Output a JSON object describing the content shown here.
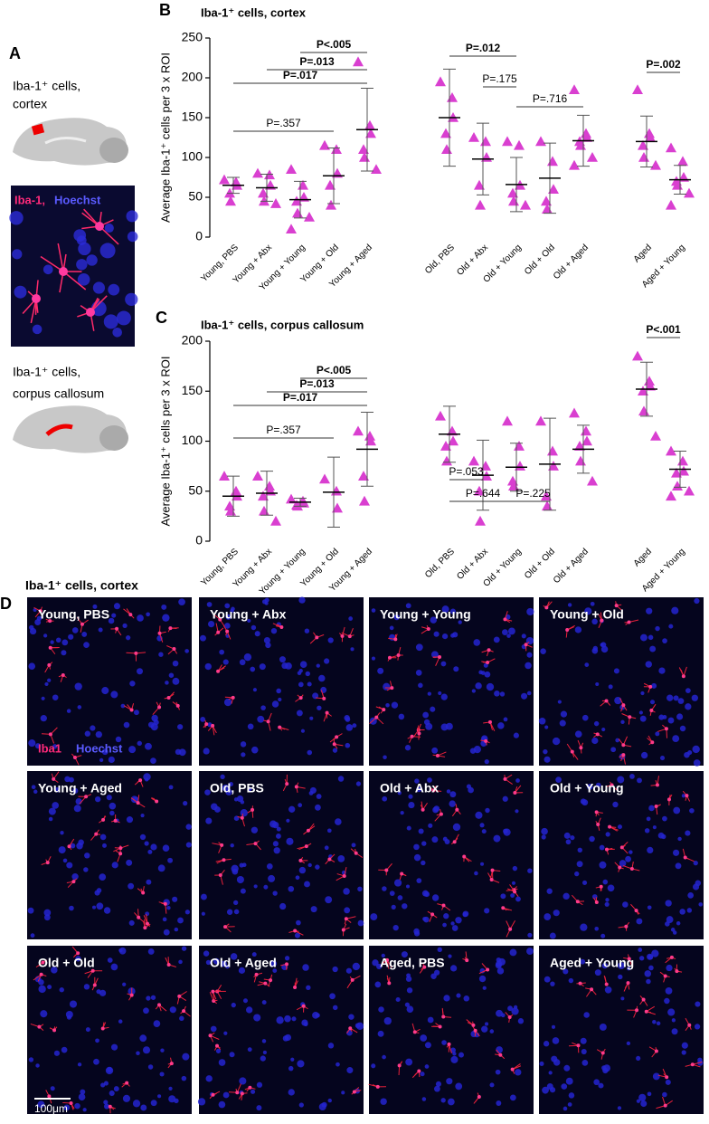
{
  "panel_a": {
    "label": "A",
    "cortex_text": [
      "Iba-1⁺ cells,",
      "cortex"
    ],
    "stain_labels": [
      "Iba-1,",
      "Hoechst"
    ],
    "callosum_text": [
      "Iba-1⁺ cells,",
      "corpus callosum"
    ]
  },
  "chart_data": [
    {
      "type": "scatter",
      "panel": "B",
      "title": "Iba-1⁺ cells, cortex",
      "y_label": "Average Iba-1⁺ cells per 3 x ROI",
      "color": "#d93fd0",
      "categories": [
        "Young, PBS",
        "Young + Abx",
        "Young + Young",
        "Young + Old",
        "Young + Aged",
        "Old, PBS",
        "Old + Abx",
        "Old + Young",
        "Old + Old",
        "Old + Aged",
        "Aged",
        "Aged + Young"
      ],
      "points": [
        [
          72,
          69,
          65,
          55,
          45
        ],
        [
          80,
          78,
          65,
          55,
          45,
          42
        ],
        [
          85,
          65,
          50,
          45,
          30,
          25,
          10
        ],
        [
          115,
          110,
          80,
          65,
          40
        ],
        [
          220,
          140,
          130,
          110,
          100,
          85
        ],
        [
          195,
          175,
          150,
          130,
          110
        ],
        [
          125,
          120,
          100,
          65,
          40
        ],
        [
          120,
          115,
          65,
          55,
          45,
          40
        ],
        [
          120,
          95,
          60,
          45,
          35
        ],
        [
          185,
          130,
          125,
          120,
          115,
          100,
          90
        ],
        [
          185,
          130,
          125,
          115,
          100,
          90
        ],
        [
          112,
          95,
          75,
          70,
          65,
          55,
          40
        ]
      ],
      "means": [
        65,
        62,
        47,
        77,
        135,
        150,
        98,
        66,
        74,
        121,
        120,
        72
      ],
      "sd": [
        10,
        17,
        23,
        35,
        52,
        61,
        45,
        34,
        44,
        32,
        32,
        18
      ],
      "ylim": [
        0,
        250
      ],
      "yticks": [
        0,
        50,
        100,
        150,
        200,
        250
      ],
      "comparisons": [
        {
          "label": "P=.357",
          "from": "Young, PBS",
          "to": "Young + Old",
          "bold": false
        },
        {
          "label": "P=.017",
          "from": "Young, PBS",
          "to": "Young + Aged",
          "bold": true
        },
        {
          "label": "P=.013",
          "from": "Young + Abx",
          "to": "Young + Aged",
          "bold": true
        },
        {
          "label": "P<.005",
          "from": "Young + Young",
          "to": "Young + Aged",
          "bold": true
        },
        {
          "label": "P=.012",
          "from": "Old, PBS",
          "to": "Old + Young",
          "bold": true
        },
        {
          "label": "P=.175",
          "from": "Old + Abx",
          "to": "Old + Young",
          "bold": false
        },
        {
          "label": "P=.716",
          "from": "Old + Young",
          "to": "Old + Aged",
          "bold": false
        },
        {
          "label": "P=.002",
          "from": "Aged",
          "to": "Aged + Young",
          "bold": true
        }
      ]
    },
    {
      "type": "scatter",
      "panel": "C",
      "title": "Iba-1⁺ cells, corpus callosum",
      "y_label": "Average Iba-1⁺ cells per 3 x ROI",
      "color": "#d93fd0",
      "categories": [
        "Young, PBS",
        "Young + Abx",
        "Young + Young",
        "Young + Old",
        "Young + Aged",
        "Old, PBS",
        "Old + Abx",
        "Old + Young",
        "Old + Old",
        "Old + Aged",
        "Aged",
        "Aged + Young"
      ],
      "points": [
        [
          65,
          50,
          45,
          35,
          30
        ],
        [
          65,
          55,
          50,
          45,
          30,
          20
        ],
        [
          42,
          40,
          38,
          36,
          35
        ],
        [
          62,
          50,
          33
        ],
        [
          110,
          105,
          100,
          65,
          40
        ],
        [
          125,
          110,
          100,
          95,
          80
        ],
        [
          80,
          75,
          65,
          50,
          20
        ],
        [
          120,
          95,
          75,
          60,
          55
        ],
        [
          120,
          90,
          75,
          45,
          35
        ],
        [
          128,
          110,
          100,
          95,
          80,
          60
        ],
        [
          185,
          160,
          155,
          150,
          130,
          105
        ],
        [
          90,
          80,
          70,
          68,
          55,
          50,
          45
        ]
      ],
      "means": [
        45,
        48,
        39,
        49,
        92,
        107,
        66,
        74,
        77,
        92,
        152,
        72
      ],
      "sd": [
        20,
        22,
        4,
        35,
        37,
        28,
        35,
        24,
        46,
        24,
        27,
        18
      ],
      "ylim": [
        0,
        200
      ],
      "yticks": [
        0,
        50,
        100,
        150,
        200
      ],
      "comparisons": [
        {
          "label": "P=.357",
          "from": "Young, PBS",
          "to": "Young + Old",
          "bold": false
        },
        {
          "label": "P=.017",
          "from": "Young, PBS",
          "to": "Young + Aged",
          "bold": true
        },
        {
          "label": "P=.013",
          "from": "Young + Abx",
          "to": "Young + Aged",
          "bold": true
        },
        {
          "label": "P<.005",
          "from": "Young + Young",
          "to": "Young + Aged",
          "bold": true
        },
        {
          "label": "P=.053",
          "from": "Old, PBS",
          "to": "Old + Abx",
          "bold": false
        },
        {
          "label": "P=.644",
          "from": "Old, PBS",
          "to": "Old + Young",
          "bold": false
        },
        {
          "label": "P=.225",
          "from": "Old + Young",
          "to": "Old + Old",
          "bold": false
        },
        {
          "label": "P<.001",
          "from": "Aged",
          "to": "Aged + Young",
          "bold": true
        }
      ]
    }
  ],
  "panel_d": {
    "label": "D",
    "title": "Iba-1⁺ cells, cortex",
    "images": [
      "Young, PBS",
      "Young + Abx",
      "Young + Young",
      "Young + Old",
      "Young + Aged",
      "Old, PBS",
      "Old + Abx",
      "Old + Young",
      "Old + Old",
      "Old + Aged",
      "Aged, PBS",
      "Aged + Young"
    ],
    "stain_labels": [
      "Iba1",
      "Hoechst"
    ],
    "scale_bar": "100μm"
  }
}
